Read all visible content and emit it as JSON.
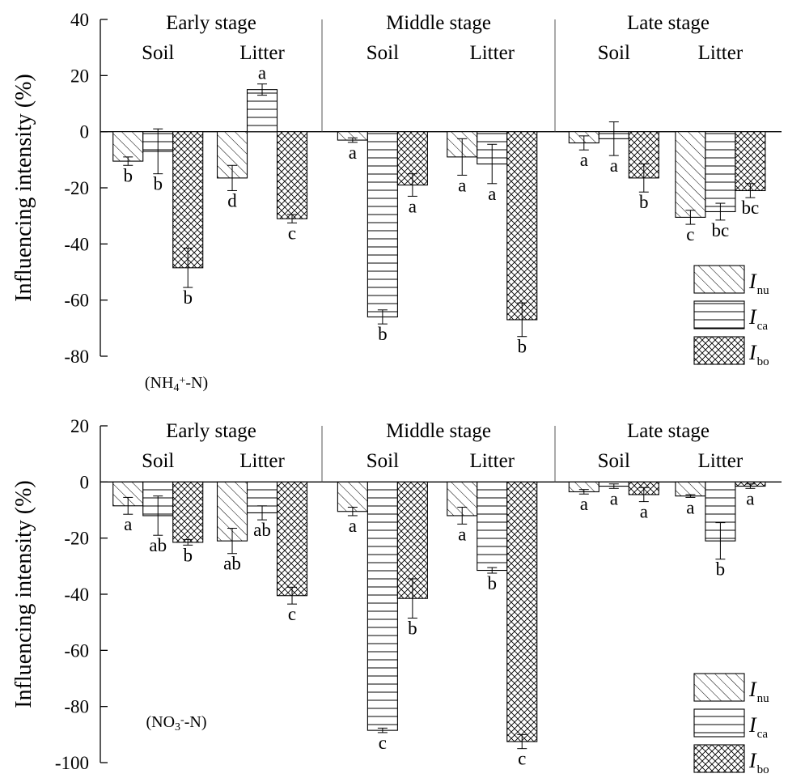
{
  "colors": {
    "axis": "#000000",
    "bar_fill": "#ffffff",
    "bar_stroke": "#000000"
  },
  "legend": {
    "placement": "bottom-right",
    "items": [
      {
        "key": "nu",
        "main": "I",
        "sub": "nu",
        "pattern": "diagonal-hatch"
      },
      {
        "key": "ca",
        "main": "I",
        "sub": "ca",
        "pattern": "horizontal-lines"
      },
      {
        "key": "bo",
        "main": "I",
        "sub": "bo",
        "pattern": "crosshatch"
      }
    ]
  },
  "chart_data": [
    {
      "type": "bar",
      "panel_label": {
        "prefix": "(NH",
        "sub": "4",
        "sup": "+",
        "suffix": "-N)"
      },
      "ylabel": "Influencing intensity (%)",
      "ylim": [
        -80,
        40
      ],
      "yticks": [
        40,
        20,
        0,
        -20,
        -40,
        -60,
        -80
      ],
      "groups": [
        {
          "stage": "Early stage",
          "subgroups": [
            {
              "name": "Soil",
              "bars": [
                {
                  "series": "nu",
                  "value": -10.5,
                  "err": 1.5,
                  "letter": "b"
                },
                {
                  "series": "ca",
                  "value": -7,
                  "err": 8,
                  "letter": "b"
                },
                {
                  "series": "bo",
                  "value": -48.5,
                  "err": 7,
                  "letter": "b"
                }
              ]
            },
            {
              "name": "Litter",
              "bars": [
                {
                  "series": "nu",
                  "value": -16.5,
                  "err": 4.5,
                  "letter": "d"
                },
                {
                  "series": "ca",
                  "value": 15,
                  "err": 2,
                  "letter": "a"
                },
                {
                  "series": "bo",
                  "value": -31,
                  "err": 1.5,
                  "letter": "c"
                }
              ]
            }
          ]
        },
        {
          "stage": "Middle stage",
          "subgroups": [
            {
              "name": "Soil",
              "bars": [
                {
                  "series": "nu",
                  "value": -3,
                  "err": 0.8,
                  "letter": "a"
                },
                {
                  "series": "ca",
                  "value": -66,
                  "err": 2.5,
                  "letter": "b"
                },
                {
                  "series": "bo",
                  "value": -19,
                  "err": 4,
                  "letter": "a"
                }
              ]
            },
            {
              "name": "Litter",
              "bars": [
                {
                  "series": "nu",
                  "value": -9,
                  "err": 6.5,
                  "letter": "a"
                },
                {
                  "series": "ca",
                  "value": -11.5,
                  "err": 7,
                  "letter": "a"
                },
                {
                  "series": "bo",
                  "value": -67,
                  "err": 6,
                  "letter": "b"
                }
              ]
            }
          ]
        },
        {
          "stage": "Late stage",
          "subgroups": [
            {
              "name": "Soil",
              "bars": [
                {
                  "series": "nu",
                  "value": -4,
                  "err": 2.5,
                  "letter": "a"
                },
                {
                  "series": "ca",
                  "value": -2.5,
                  "err": 6,
                  "letter": "a"
                },
                {
                  "series": "bo",
                  "value": -16.5,
                  "err": 5,
                  "letter": "b"
                }
              ]
            },
            {
              "name": "Litter",
              "bars": [
                {
                  "series": "nu",
                  "value": -30.5,
                  "err": 2.5,
                  "letter": "c"
                },
                {
                  "series": "ca",
                  "value": -28.5,
                  "err": 3,
                  "letter": "bc"
                },
                {
                  "series": "bo",
                  "value": -21,
                  "err": 2.5,
                  "letter": "bc"
                }
              ]
            }
          ]
        }
      ]
    },
    {
      "type": "bar",
      "panel_label": {
        "prefix": "(NO",
        "sub": "3",
        "sup": "-",
        "suffix": "-N)"
      },
      "ylabel": "Influencing intensity (%)",
      "ylim": [
        -100,
        20
      ],
      "yticks": [
        20,
        0,
        -20,
        -40,
        -60,
        -80,
        -100
      ],
      "groups": [
        {
          "stage": "Early stage",
          "subgroups": [
            {
              "name": "Soil",
              "bars": [
                {
                  "series": "nu",
                  "value": -8.5,
                  "err": 3,
                  "letter": "a"
                },
                {
                  "series": "ca",
                  "value": -12,
                  "err": 7,
                  "letter": "ab"
                },
                {
                  "series": "bo",
                  "value": -21.5,
                  "err": 1,
                  "letter": "b"
                }
              ]
            },
            {
              "name": "Litter",
              "bars": [
                {
                  "series": "nu",
                  "value": -21,
                  "err": 4.5,
                  "letter": "ab"
                },
                {
                  "series": "ca",
                  "value": -11,
                  "err": 2.5,
                  "letter": "ab"
                },
                {
                  "series": "bo",
                  "value": -40.5,
                  "err": 3,
                  "letter": "c"
                }
              ]
            }
          ]
        },
        {
          "stage": "Middle stage",
          "subgroups": [
            {
              "name": "Soil",
              "bars": [
                {
                  "series": "nu",
                  "value": -10.5,
                  "err": 1.5,
                  "letter": "a"
                },
                {
                  "series": "ca",
                  "value": -88.5,
                  "err": 0.8,
                  "letter": "c"
                },
                {
                  "series": "bo",
                  "value": -41.5,
                  "err": 7,
                  "letter": "b"
                }
              ]
            },
            {
              "name": "Litter",
              "bars": [
                {
                  "series": "nu",
                  "value": -12,
                  "err": 3,
                  "letter": "a"
                },
                {
                  "series": "ca",
                  "value": -31.5,
                  "err": 1,
                  "letter": "b"
                },
                {
                  "series": "bo",
                  "value": -92.5,
                  "err": 2.5,
                  "letter": "c"
                }
              ]
            }
          ]
        },
        {
          "stage": "Late stage",
          "subgroups": [
            {
              "name": "Soil",
              "bars": [
                {
                  "series": "nu",
                  "value": -3.5,
                  "err": 0.8,
                  "letter": "a"
                },
                {
                  "series": "ca",
                  "value": -1.5,
                  "err": 0.8,
                  "letter": "a"
                },
                {
                  "series": "bo",
                  "value": -4.5,
                  "err": 2.5,
                  "letter": "a"
                }
              ]
            },
            {
              "name": "Litter",
              "bars": [
                {
                  "series": "nu",
                  "value": -5,
                  "err": 0.5,
                  "letter": "a"
                },
                {
                  "series": "ca",
                  "value": -21,
                  "err": 6.5,
                  "letter": "b"
                },
                {
                  "series": "bo",
                  "value": -1.5,
                  "err": 0.8,
                  "letter": "a"
                }
              ]
            }
          ]
        }
      ]
    }
  ]
}
